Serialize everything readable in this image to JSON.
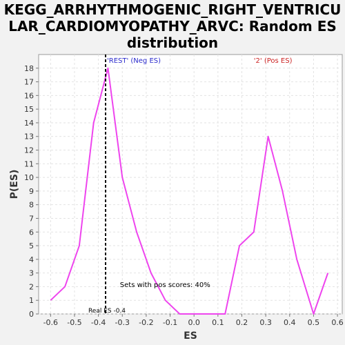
{
  "chart_data": {
    "type": "line",
    "title_lines": [
      "KEGG_ARRHYTHMOGENIC_RIGHT_VENTRICU",
      "LAR_CARDIOMYOPATHY_ARVC: Random ES",
      "distribution"
    ],
    "xlabel": "ES",
    "ylabel": "P(ES)",
    "xlim": [
      -0.65,
      0.62
    ],
    "ylim": [
      0,
      19
    ],
    "x_ticks": [
      -0.6,
      -0.5,
      -0.4,
      -0.3,
      -0.2,
      -0.1,
      0.0,
      0.1,
      0.2,
      0.3,
      0.4,
      0.5,
      0.6
    ],
    "x_tick_labels": [
      "-0.6",
      "-0.5",
      "-0.4",
      "-0.3",
      "-0.2",
      "-0.1",
      "0.0",
      "0.1",
      "0.2",
      "0.3",
      "0.4",
      "0.5",
      "0.6"
    ],
    "y_ticks": [
      0,
      1,
      2,
      3,
      4,
      5,
      6,
      7,
      8,
      9,
      10,
      11,
      12,
      13,
      14,
      15,
      16,
      17,
      18
    ],
    "y_tick_labels": [
      "0",
      "1",
      "2",
      "3",
      "4",
      "5",
      "6",
      "7",
      "8",
      "9",
      "10",
      "11",
      "12",
      "13",
      "14",
      "15",
      "16",
      "17",
      "18"
    ],
    "grid": true,
    "series": [
      {
        "color": "#ee44ee",
        "x": [
          -0.6,
          -0.54,
          -0.48,
          -0.42,
          -0.36,
          -0.3,
          -0.24,
          -0.18,
          -0.12,
          -0.06,
          0.0,
          0.07,
          0.13,
          0.19,
          0.25,
          0.31,
          0.37,
          0.43,
          0.5,
          0.56
        ],
        "y": [
          1,
          2,
          5,
          14,
          18,
          10,
          6,
          3,
          1,
          0,
          0,
          0,
          0,
          5,
          6,
          13,
          9,
          4,
          0,
          3
        ]
      }
    ],
    "real_es": {
      "x": -0.37,
      "label": "Real ES -0.4",
      "color": "#000000"
    },
    "annotations": {
      "neg_label": "'REST' (Neg ES)",
      "neg_color": "#2a2acc",
      "pos_label": "'2' (Pos ES)",
      "pos_color": "#cc2222",
      "pos_scores_text": "Sets with pos scores: 40%"
    }
  }
}
